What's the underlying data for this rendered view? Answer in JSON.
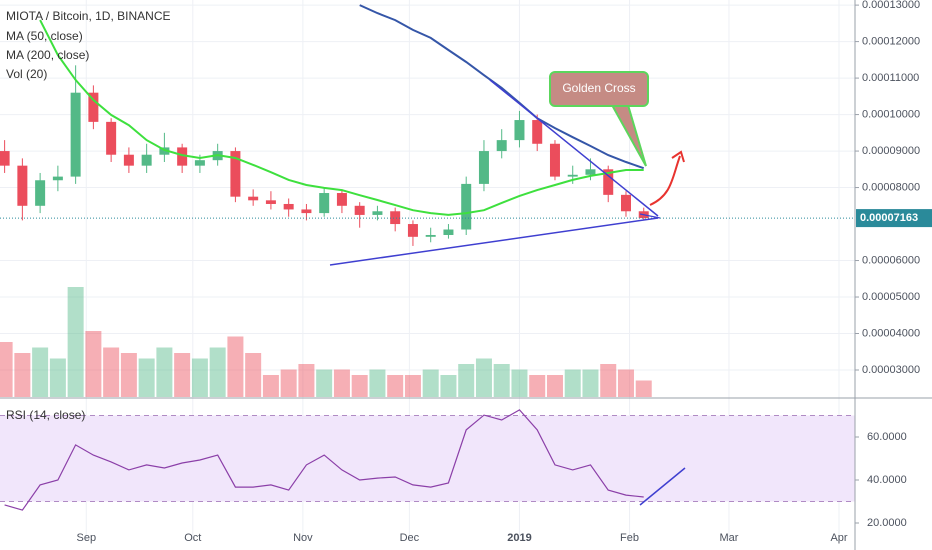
{
  "chart_data": {
    "type": "candlestick",
    "title": "MIOTA / Bitcoin, 1D, BINANCE",
    "volume_label": "Vol (20)",
    "x": [
      8,
      13,
      18,
      23,
      28,
      33,
      38,
      43,
      48,
      53,
      58,
      63,
      68,
      73,
      78,
      83,
      88,
      93,
      98,
      103,
      108,
      113,
      118,
      123,
      128,
      133,
      138,
      143,
      148,
      153,
      158,
      163,
      168,
      173,
      178,
      183,
      188
    ],
    "open": [
      9e-05,
      8.6e-05,
      7.5e-05,
      8.2e-05,
      8.3e-05,
      0.000106,
      9.8e-05,
      8.9e-05,
      8.6e-05,
      8.9e-05,
      9.1e-05,
      8.6e-05,
      8.75e-05,
      9e-05,
      7.75e-05,
      7.65e-05,
      7.55e-05,
      7.4e-05,
      7.3e-05,
      7.85e-05,
      7.5e-05,
      7.25e-05,
      7.35e-05,
      7e-05,
      6.65e-05,
      6.7e-05,
      6.85e-05,
      8.1e-05,
      9e-05,
      9.3e-05,
      9.85e-05,
      9.2e-05,
      8.3e-05,
      8.35e-05,
      8.5e-05,
      7.8e-05,
      7.35e-05
    ],
    "high": [
      9.3e-05,
      8.8e-05,
      8.4e-05,
      8.6e-05,
      0.0001135,
      0.000108,
      9.9e-05,
      9.1e-05,
      9.2e-05,
      9.5e-05,
      9.2e-05,
      8.9e-05,
      9.2e-05,
      9.1e-05,
      7.95e-05,
      7.9e-05,
      7.7e-05,
      7.55e-05,
      8e-05,
      7.95e-05,
      7.6e-05,
      7.5e-05,
      7.45e-05,
      7.1e-05,
      6.9e-05,
      7e-05,
      8.3e-05,
      9.3e-05,
      9.6e-05,
      0.000101,
      0.0001,
      9.3e-05,
      8.6e-05,
      8.8e-05,
      8.6e-05,
      7.9e-05,
      7.45e-05
    ],
    "low": [
      8.4e-05,
      7.1e-05,
      7.3e-05,
      7.9e-05,
      8.1e-05,
      9.6e-05,
      8.7e-05,
      8.4e-05,
      8.4e-05,
      8.7e-05,
      8.4e-05,
      8.4e-05,
      8.6e-05,
      7.6e-05,
      7.5e-05,
      7.4e-05,
      7.2e-05,
      7.1e-05,
      7.2e-05,
      7.3e-05,
      6.9e-05,
      7.1e-05,
      6.8e-05,
      6.4e-05,
      6.5e-05,
      6.6e-05,
      6.7e-05,
      7.9e-05,
      8.8e-05,
      9.1e-05,
      9e-05,
      8.2e-05,
      8.1e-05,
      8.2e-05,
      7.6e-05,
      7.2e-05,
      7.1e-05
    ],
    "close": [
      8.6e-05,
      7.5e-05,
      8.2e-05,
      8.3e-05,
      0.000106,
      9.8e-05,
      8.9e-05,
      8.6e-05,
      8.9e-05,
      9.1e-05,
      8.6e-05,
      8.75e-05,
      9e-05,
      7.75e-05,
      7.65e-05,
      7.55e-05,
      7.4e-05,
      7.3e-05,
      7.85e-05,
      7.5e-05,
      7.25e-05,
      7.35e-05,
      7e-05,
      6.65e-05,
      6.7e-05,
      6.85e-05,
      8.1e-05,
      9e-05,
      9.3e-05,
      9.85e-05,
      9.2e-05,
      8.3e-05,
      8.35e-05,
      8.5e-05,
      7.8e-05,
      7.35e-05,
      7.163e-05
    ],
    "up_color": "#53b987",
    "down_color": "#eb4d5c",
    "volume": [
      50,
      40,
      45,
      35,
      100,
      60,
      45,
      40,
      35,
      45,
      40,
      35,
      45,
      55,
      40,
      20,
      25,
      30,
      25,
      25,
      20,
      25,
      20,
      20,
      25,
      20,
      30,
      35,
      30,
      25,
      20,
      20,
      25,
      25,
      30,
      25,
      15
    ],
    "vlim": [
      0,
      100
    ],
    "series": [
      {
        "name": "MA (50, close)",
        "color": "#3ee03e",
        "values": [
          null,
          null,
          0.0001259,
          0.0001163,
          0.0001095,
          0.000104,
          9.99e-05,
          9.71e-05,
          9.3e-05,
          9.03e-05,
          8.89e-05,
          8.81e-05,
          8.89e-05,
          8.81e-05,
          8.62e-05,
          8.42e-05,
          8.21e-05,
          8.07e-05,
          7.99e-05,
          7.93e-05,
          7.79e-05,
          7.66e-05,
          7.52e-05,
          7.38e-05,
          7.3e-05,
          7.25e-05,
          7.3e-05,
          7.38e-05,
          7.58e-05,
          7.77e-05,
          7.93e-05,
          8.07e-05,
          8.21e-05,
          8.32e-05,
          8.4e-05,
          8.48e-05,
          8.48e-05
        ]
      },
      {
        "name": "MA (200, close)",
        "color": "#3556a8",
        "values": [
          null,
          null,
          null,
          null,
          null,
          null,
          null,
          null,
          null,
          null,
          null,
          null,
          null,
          null,
          null,
          null,
          null,
          null,
          null,
          null,
          0.00013,
          0.0001278,
          0.0001259,
          0.0001232,
          0.000121,
          0.0001177,
          0.0001144,
          0.0001108,
          0.0001073,
          0.0001032,
          9.9e-05,
          9.63e-05,
          9.38e-05,
          9.14e-05,
          8.89e-05,
          8.7e-05,
          8.53e-05
        ]
      }
    ],
    "last_price": {
      "value": 7.163e-05,
      "label": "0.00007163"
    },
    "xlim": [
      6.7,
      247.5
    ],
    "xticks": [
      {
        "value": 31,
        "label": "Sep"
      },
      {
        "value": 61,
        "label": "Oct"
      },
      {
        "value": 92,
        "label": "Nov"
      },
      {
        "value": 122,
        "label": "Dec"
      },
      {
        "value": 153,
        "label": "2019"
      },
      {
        "value": 184,
        "label": "Feb"
      },
      {
        "value": 212,
        "label": "Mar"
      },
      {
        "value": 243,
        "label": "Apr"
      }
    ],
    "ylim": [
      2.26e-05,
      0.0001314
    ],
    "yticks": [
      {
        "value": 3e-05,
        "label": "0.00003000"
      },
      {
        "value": 4e-05,
        "label": "0.00004000"
      },
      {
        "value": 5e-05,
        "label": "0.00005000"
      },
      {
        "value": 6e-05,
        "label": "0.00006000"
      },
      {
        "value": 8e-05,
        "label": "0.00008000"
      },
      {
        "value": 9e-05,
        "label": "0.00009000"
      },
      {
        "value": 0.0001,
        "label": "0.00010000"
      },
      {
        "value": 0.00011,
        "label": "0.00011000"
      },
      {
        "value": 0.00012,
        "label": "0.00012000"
      },
      {
        "value": 0.00013,
        "label": "0.00013000"
      }
    ],
    "grid": true,
    "annotation": "Golden Cross",
    "rsi": {
      "name": "RSI (14, close)",
      "color": "#8b3fa8",
      "values": [
        28.4,
        26.0,
        37.7,
        40.0,
        56.3,
        51.6,
        48.4,
        44.7,
        47.0,
        45.6,
        47.9,
        49.3,
        51.6,
        36.7,
        36.7,
        37.7,
        35.3,
        47.0,
        51.6,
        44.7,
        40.0,
        40.9,
        41.4,
        37.7,
        36.7,
        38.6,
        63.3,
        70.2,
        67.9,
        72.6,
        63.3,
        47.0,
        44.7,
        47.0,
        35.3,
        33.0,
        32.1
      ],
      "ylim": [
        12.1,
        77.2
      ],
      "yticks": [
        {
          "value": 20,
          "label": "20.0000"
        },
        {
          "value": 40,
          "label": "40.0000"
        },
        {
          "value": 60,
          "label": "60.0000"
        }
      ],
      "bands": [
        30,
        70
      ]
    }
  }
}
